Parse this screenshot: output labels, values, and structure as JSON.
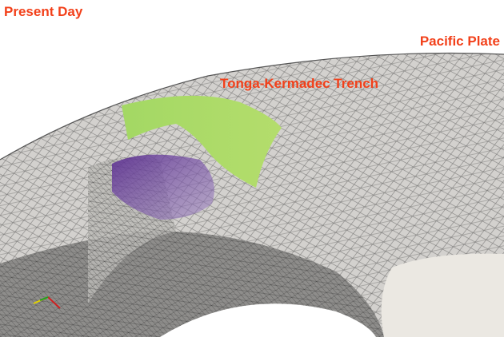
{
  "labels": {
    "time": "Present Day",
    "plate": "Pacific Plate",
    "trench": "Tonga-Kermadec Trench"
  }
}
